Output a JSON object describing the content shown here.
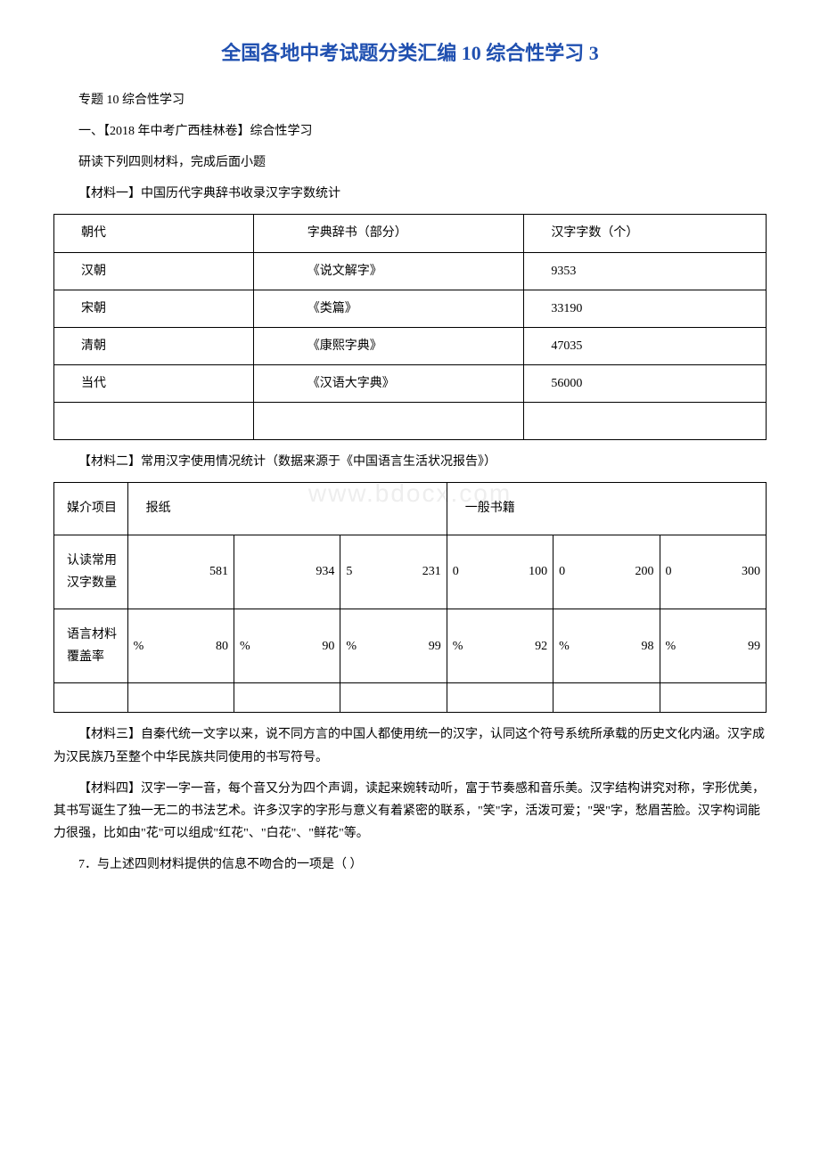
{
  "title": "全国各地中考试题分类汇编 10 综合性学习 3",
  "intro": {
    "line1": "专题 10 综合性学习",
    "line2": "一、【2018 年中考广西桂林卷】综合性学习",
    "line3": "研读下列四则材料，完成后面小题",
    "material1_label": "【材料一】中国历代字典辞书收录汉字字数统计"
  },
  "table1": {
    "headers": [
      "朝代",
      "字典辞书（部分）",
      "汉字字数（个）"
    ],
    "rows": [
      [
        "汉朝",
        "《说文解字》",
        "9353"
      ],
      [
        "宋朝",
        "《类篇》",
        "33190"
      ],
      [
        "清朝",
        "《康熙字典》",
        "47035"
      ],
      [
        "当代",
        "《汉语大字典》",
        "56000"
      ]
    ]
  },
  "material2_label": "【材料二】常用汉字使用情况统计（数据来源于《中国语言生活状况报告》）",
  "table2": {
    "row1_label": "媒介项目",
    "row1_group1": "报纸",
    "row1_group2": "一般书籍",
    "row2_label": "认读常用汉字数量",
    "row2_data": [
      {
        "left": "",
        "right": "581"
      },
      {
        "left": "",
        "right": "934"
      },
      {
        "left": "5",
        "right": "231"
      },
      {
        "left": "0",
        "right": "100"
      },
      {
        "left": "0",
        "right": "200"
      },
      {
        "left": "0",
        "right": "300"
      }
    ],
    "row3_label": "语言材料覆盖率",
    "row3_data": [
      {
        "left": "%",
        "right": "80"
      },
      {
        "left": "%",
        "right": "90"
      },
      {
        "left": "%",
        "right": "99"
      },
      {
        "left": "%",
        "right": "92"
      },
      {
        "left": "%",
        "right": "98"
      },
      {
        "left": "%",
        "right": "99"
      }
    ]
  },
  "watermark": "www.bdocx.com",
  "material3": "【材料三】自秦代统一文字以来，说不同方言的中国人都使用统一的汉字，认同这个符号系统所承载的历史文化内涵。汉字成为汉民族乃至整个中华民族共同使用的书写符号。",
  "material4": "【材料四】汉字一字一音，每个音又分为四个声调，读起来婉转动听，富于节奏感和音乐美。汉字结构讲究对称，字形优美，其书写诞生了独一无二的书法艺术。许多汉字的字形与意义有着紧密的联系，\"笑\"字，活泼可爱；\"哭\"字，愁眉苦脸。汉字构词能力很强，比如由\"花\"可以组成\"红花\"、\"白花\"、\"鲜花\"等。",
  "question7": "7．与上述四则材料提供的信息不吻合的一项是（ ）"
}
